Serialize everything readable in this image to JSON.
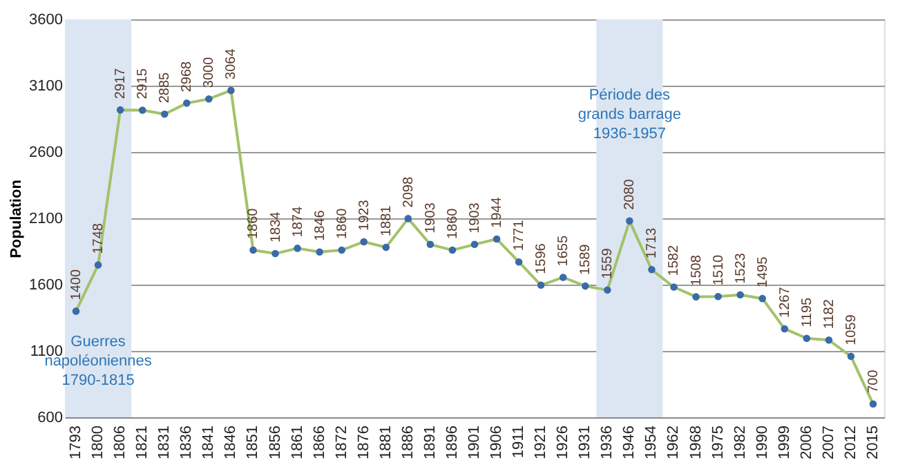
{
  "chart_data": {
    "type": "line",
    "ylabel": "Population",
    "categories": [
      "1793",
      "1800",
      "1806",
      "1821",
      "1831",
      "1836",
      "1841",
      "1846",
      "1851",
      "1856",
      "1861",
      "1866",
      "1872",
      "1876",
      "1881",
      "1886",
      "1891",
      "1896",
      "1901",
      "1906",
      "1911",
      "1921",
      "1926",
      "1931",
      "1936",
      "1946",
      "1954",
      "1962",
      "1968",
      "1975",
      "1982",
      "1990",
      "1999",
      "2006",
      "2007",
      "2012",
      "2015"
    ],
    "series": [
      {
        "color": "#a3c26a",
        "values": [
          1400,
          1748,
          2917,
          2915,
          2885,
          2968,
          3000,
          3064,
          1860,
          1834,
          1874,
          1846,
          1860,
          1923,
          1881,
          2098,
          1903,
          1860,
          1903,
          1944,
          1771,
          1596,
          1655,
          1589,
          1559,
          2080,
          1713,
          1582,
          1508,
          1510,
          1523,
          1495,
          1267,
          1195,
          1182,
          1059,
          700
        ]
      }
    ],
    "ylim": [
      600,
      3600
    ],
    "yticks": [
      600,
      1100,
      1600,
      2100,
      2600,
      3100,
      3600
    ],
    "grid": "y",
    "marker": "circle",
    "data_labels": true,
    "bands": [
      {
        "axis": "x",
        "from": "1793",
        "to": "1806",
        "label": "Guerres\nnapoléoniennes\n1790-1815",
        "color": "#dce6f2"
      },
      {
        "axis": "x",
        "from": "1936",
        "to": "1954",
        "label": "Période des\ngrands barrage\n1936-1957",
        "color": "#dce6f2"
      }
    ]
  }
}
